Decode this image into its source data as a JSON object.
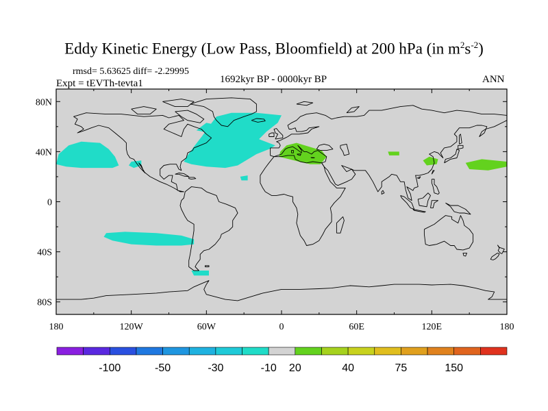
{
  "header": {
    "title_main": "Eddy Kinetic Energy (Low Pass, Bloomfield) at 200 hPa (in m",
    "title_sup1": "2",
    "title_mid": "s",
    "title_sup2": "-2",
    "title_end": ")",
    "stats": "rmsd= 5.63625 diff= -2.29995",
    "experiment": "Expt = tEVTh-tevta1",
    "period": "1692kyr BP - 0000kyr BP",
    "season": "ANN"
  },
  "map": {
    "projection": "cylindrical equidistant",
    "lon_range": [
      -180,
      180
    ],
    "lat_range": [
      -90,
      90
    ],
    "lon_ticks": [
      {
        "value": -180,
        "label": "180"
      },
      {
        "value": -120,
        "label": "120W"
      },
      {
        "value": -60,
        "label": "60W"
      },
      {
        "value": 0,
        "label": "0"
      },
      {
        "value": 60,
        "label": "60E"
      },
      {
        "value": 120,
        "label": "120E"
      },
      {
        "value": 180,
        "label": "180"
      }
    ],
    "lat_ticks": [
      {
        "value": 80,
        "label": "80N"
      },
      {
        "value": 40,
        "label": "40N"
      },
      {
        "value": 0,
        "label": "0"
      },
      {
        "value": -40,
        "label": "40S"
      },
      {
        "value": -80,
        "label": "80S"
      }
    ],
    "background_color": "#d3d3d3",
    "coastline_color": "#000000"
  },
  "chart_data": {
    "type": "heatmap",
    "variable": "Eddy Kinetic Energy (Low Pass, Bloomfield)",
    "level": "200 hPa",
    "units": "m2 s-2",
    "colorbar": {
      "colors": [
        "#8a1fe0",
        "#5a28e0",
        "#2a50e0",
        "#1f78e0",
        "#1f96e0",
        "#1fb2e0",
        "#1fcad8",
        "#20dcc8",
        "#d3d3d3",
        "#63d21e",
        "#a6d21e",
        "#c8d21e",
        "#e0be1e",
        "#e0a01e",
        "#e0821e",
        "#e0641e",
        "#e0321e"
      ],
      "labels": [
        {
          "after_box": 2,
          "text": "-100"
        },
        {
          "after_box": 4,
          "text": "-50"
        },
        {
          "after_box": 6,
          "text": "-30"
        },
        {
          "after_box": 8,
          "text": "-10"
        },
        {
          "after_box": 9,
          "text": "20"
        },
        {
          "after_box": 11,
          "text": "40"
        },
        {
          "after_box": 13,
          "text": "75"
        },
        {
          "after_box": 15,
          "text": "150"
        }
      ]
    },
    "negative_regions": [
      {
        "name": "North Pacific (east)",
        "polygon": [
          [
            -178,
            38
          ],
          [
            -170,
            45
          ],
          [
            -160,
            48
          ],
          [
            -145,
            47
          ],
          [
            -138,
            42
          ],
          [
            -133,
            36
          ],
          [
            -130,
            29
          ],
          [
            -135,
            27
          ],
          [
            -145,
            27
          ],
          [
            -160,
            27
          ],
          [
            -172,
            28
          ],
          [
            -180,
            30
          ]
        ]
      },
      {
        "name": "Off Baja California",
        "polygon": [
          [
            -120,
            32
          ],
          [
            -112,
            33
          ],
          [
            -112,
            29
          ],
          [
            -118,
            27
          ],
          [
            -122,
            29
          ]
        ]
      },
      {
        "name": "North Atlantic",
        "polygon": [
          [
            -75,
            37
          ],
          [
            -70,
            44
          ],
          [
            -63,
            53
          ],
          [
            -58,
            60
          ],
          [
            -52,
            68
          ],
          [
            -40,
            71
          ],
          [
            -20,
            71
          ],
          [
            0,
            69
          ],
          [
            -3,
            63
          ],
          [
            -12,
            56
          ],
          [
            -18,
            50
          ],
          [
            -5,
            45
          ],
          [
            -10,
            42
          ],
          [
            -20,
            38
          ],
          [
            -35,
            29
          ],
          [
            -45,
            27
          ],
          [
            -60,
            28
          ],
          [
            -72,
            30
          ],
          [
            -78,
            32
          ]
        ]
      },
      {
        "name": "Labrador Sea",
        "polygon": [
          [
            -68,
            57
          ],
          [
            -60,
            63
          ],
          [
            -55,
            62
          ],
          [
            -58,
            55
          ]
        ]
      },
      {
        "name": "Subtropical Atlantic",
        "polygon": [
          [
            -33,
            20
          ],
          [
            -27,
            21
          ],
          [
            -27,
            17
          ],
          [
            -32,
            17
          ]
        ]
      },
      {
        "name": "South Pacific",
        "polygon": [
          [
            -140,
            -25
          ],
          [
            -125,
            -24
          ],
          [
            -100,
            -25
          ],
          [
            -80,
            -27
          ],
          [
            -70,
            -30
          ],
          [
            -70,
            -34
          ],
          [
            -80,
            -35
          ],
          [
            -100,
            -35
          ],
          [
            -120,
            -34
          ],
          [
            -135,
            -31
          ],
          [
            -142,
            -28
          ]
        ]
      },
      {
        "name": "Drake Passage",
        "polygon": [
          [
            -72,
            -55
          ],
          [
            -58,
            -55
          ],
          [
            -58,
            -59
          ],
          [
            -70,
            -59
          ]
        ]
      }
    ],
    "positive_regions": [
      {
        "name": "Mediterranean",
        "polygon": [
          [
            4,
            45
          ],
          [
            12,
            47
          ],
          [
            22,
            44
          ],
          [
            32,
            41
          ],
          [
            36,
            36
          ],
          [
            31,
            30
          ],
          [
            23,
            30
          ],
          [
            14,
            32
          ],
          [
            6,
            34
          ],
          [
            -2,
            36
          ],
          [
            -1,
            40
          ]
        ]
      },
      {
        "name": "Central Asia",
        "polygon": [
          [
            85,
            40
          ],
          [
            94,
            40
          ],
          [
            94,
            37
          ],
          [
            86,
            37
          ]
        ]
      },
      {
        "name": "East China / Japan",
        "polygon": [
          [
            113,
            33
          ],
          [
            118,
            36
          ],
          [
            125,
            34
          ],
          [
            124,
            30
          ],
          [
            116,
            29
          ]
        ]
      },
      {
        "name": "Northwest Pacific",
        "polygon": [
          [
            147,
            31
          ],
          [
            160,
            34
          ],
          [
            180,
            32
          ],
          [
            180,
            28
          ],
          [
            165,
            25
          ],
          [
            150,
            26
          ]
        ]
      }
    ]
  }
}
